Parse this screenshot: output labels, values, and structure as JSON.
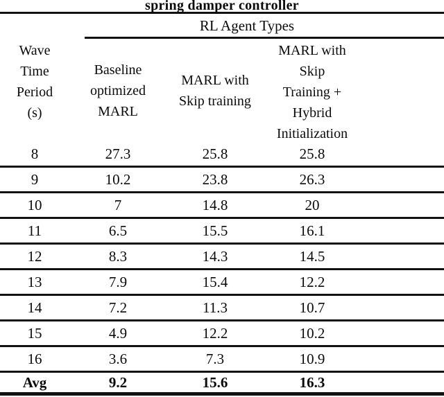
{
  "title": "spring damper controller",
  "colors": {
    "background": "#ffffff",
    "text": "#0a0a0a",
    "rule": "#111111"
  },
  "table": {
    "group_header": "RL Agent Types",
    "row_header_column": "Wave\nTime\nPeriod\n(s)",
    "columns": [
      "Baseline\noptimized\nMARL",
      "MARL with\nSkip training",
      "MARL with\nSkip\nTraining +\nHybrid\nInitialization"
    ],
    "rows": [
      {
        "period": "8",
        "baseline": "27.3",
        "skip": "25.8",
        "hybrid": "25.8"
      },
      {
        "period": "9",
        "baseline": "10.2",
        "skip": "23.8",
        "hybrid": "26.3"
      },
      {
        "period": "10",
        "baseline": "7",
        "skip": "14.8",
        "hybrid": "20"
      },
      {
        "period": "11",
        "baseline": "6.5",
        "skip": "15.5",
        "hybrid": "16.1"
      },
      {
        "period": "12",
        "baseline": "8.3",
        "skip": "14.3",
        "hybrid": "14.5"
      },
      {
        "period": "13",
        "baseline": "7.9",
        "skip": "15.4",
        "hybrid": "12.2"
      },
      {
        "period": "14",
        "baseline": "7.2",
        "skip": "11.3",
        "hybrid": "10.7"
      },
      {
        "period": "15",
        "baseline": "4.9",
        "skip": "12.2",
        "hybrid": "10.2"
      },
      {
        "period": "16",
        "baseline": "3.6",
        "skip": "7.3",
        "hybrid": "10.9"
      }
    ],
    "avg": {
      "label": "Avg",
      "baseline": "9.2",
      "skip": "15.6",
      "hybrid": "16.3"
    }
  }
}
